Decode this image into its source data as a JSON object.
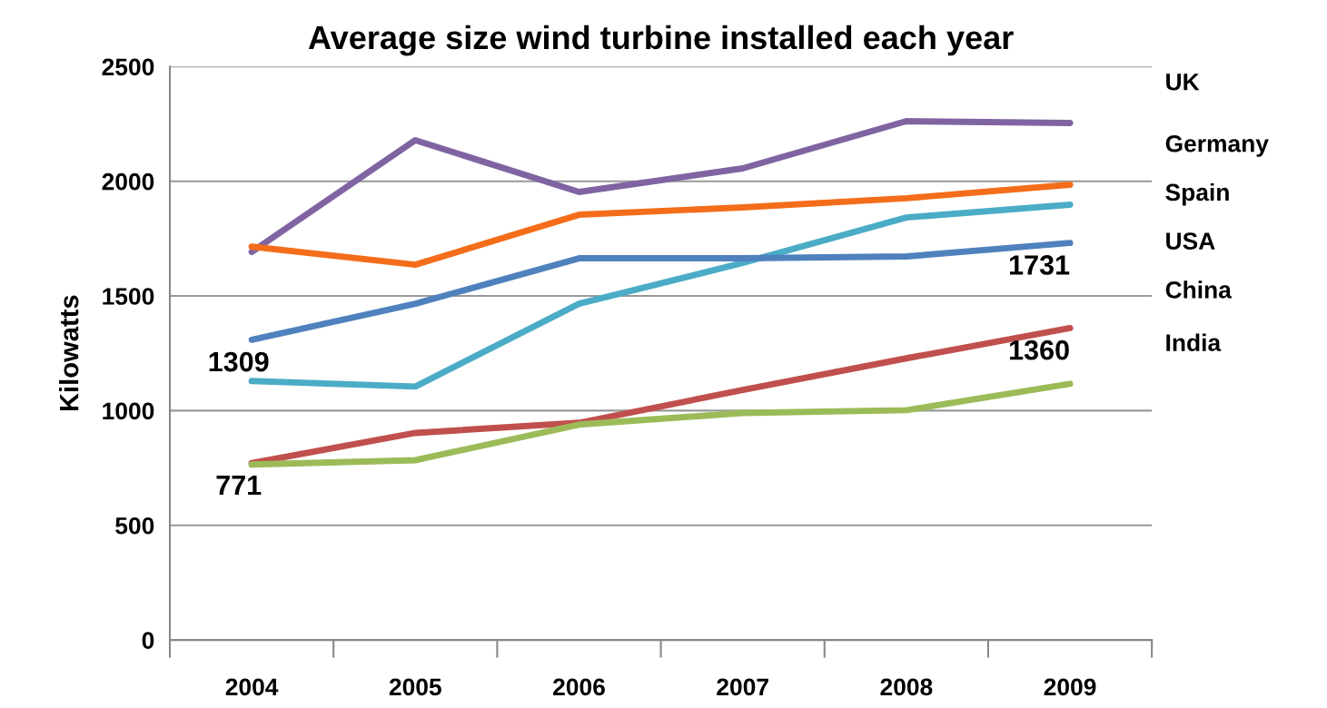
{
  "chart_data": {
    "type": "line",
    "title": "Average size wind turbine installed each year",
    "ylabel": "Kilowatts",
    "categories": [
      "2004",
      "2005",
      "2006",
      "2007",
      "2008",
      "2009"
    ],
    "series": [
      {
        "name": "UK",
        "color": "#8064a2",
        "values": [
          1692,
          2179,
          1953,
          2056,
          2262,
          2254
        ]
      },
      {
        "name": "Germany",
        "color": "#f46d1a",
        "values": [
          1715,
          1636,
          1854,
          1886,
          1926,
          1985
        ]
      },
      {
        "name": "Spain",
        "color": "#4bacc6",
        "values": [
          1129,
          1105,
          1466,
          1644,
          1842,
          1898
        ]
      },
      {
        "name": "USA",
        "color": "#4f81bd",
        "values": [
          1309,
          1466,
          1664,
          1664,
          1672,
          1731
        ],
        "value_labels": [
          "1309",
          null,
          null,
          null,
          null,
          "1731"
        ]
      },
      {
        "name": "China",
        "color": "#c0504d",
        "values": [
          771,
          903,
          947,
          1090,
          1228,
          1360
        ],
        "value_labels": [
          "771",
          null,
          null,
          null,
          null,
          "1360"
        ]
      },
      {
        "name": "India",
        "color": "#9bbb59",
        "values": [
          765,
          784,
          939,
          990,
          1002,
          1117
        ]
      }
    ],
    "ylim": [
      0,
      2500
    ],
    "yticks": [
      0,
      500,
      1000,
      1500,
      2000,
      2500
    ],
    "grid": "y",
    "marker": "none",
    "line_style": "solid"
  }
}
